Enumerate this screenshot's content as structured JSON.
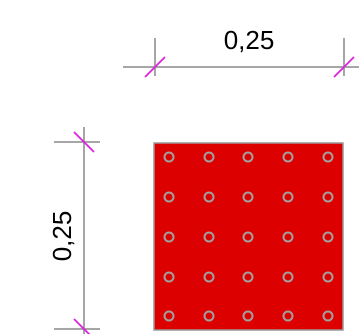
{
  "dimensions": {
    "width_label": "0,25",
    "height_label": "0,25"
  },
  "pattern": {
    "rows": 5,
    "cols": 5
  },
  "colors": {
    "section_fill": "#dd0000",
    "section_border": "#999999",
    "rebar": "#a0a0a0",
    "dimension_line": "#888888",
    "tick": "#e020e0"
  }
}
